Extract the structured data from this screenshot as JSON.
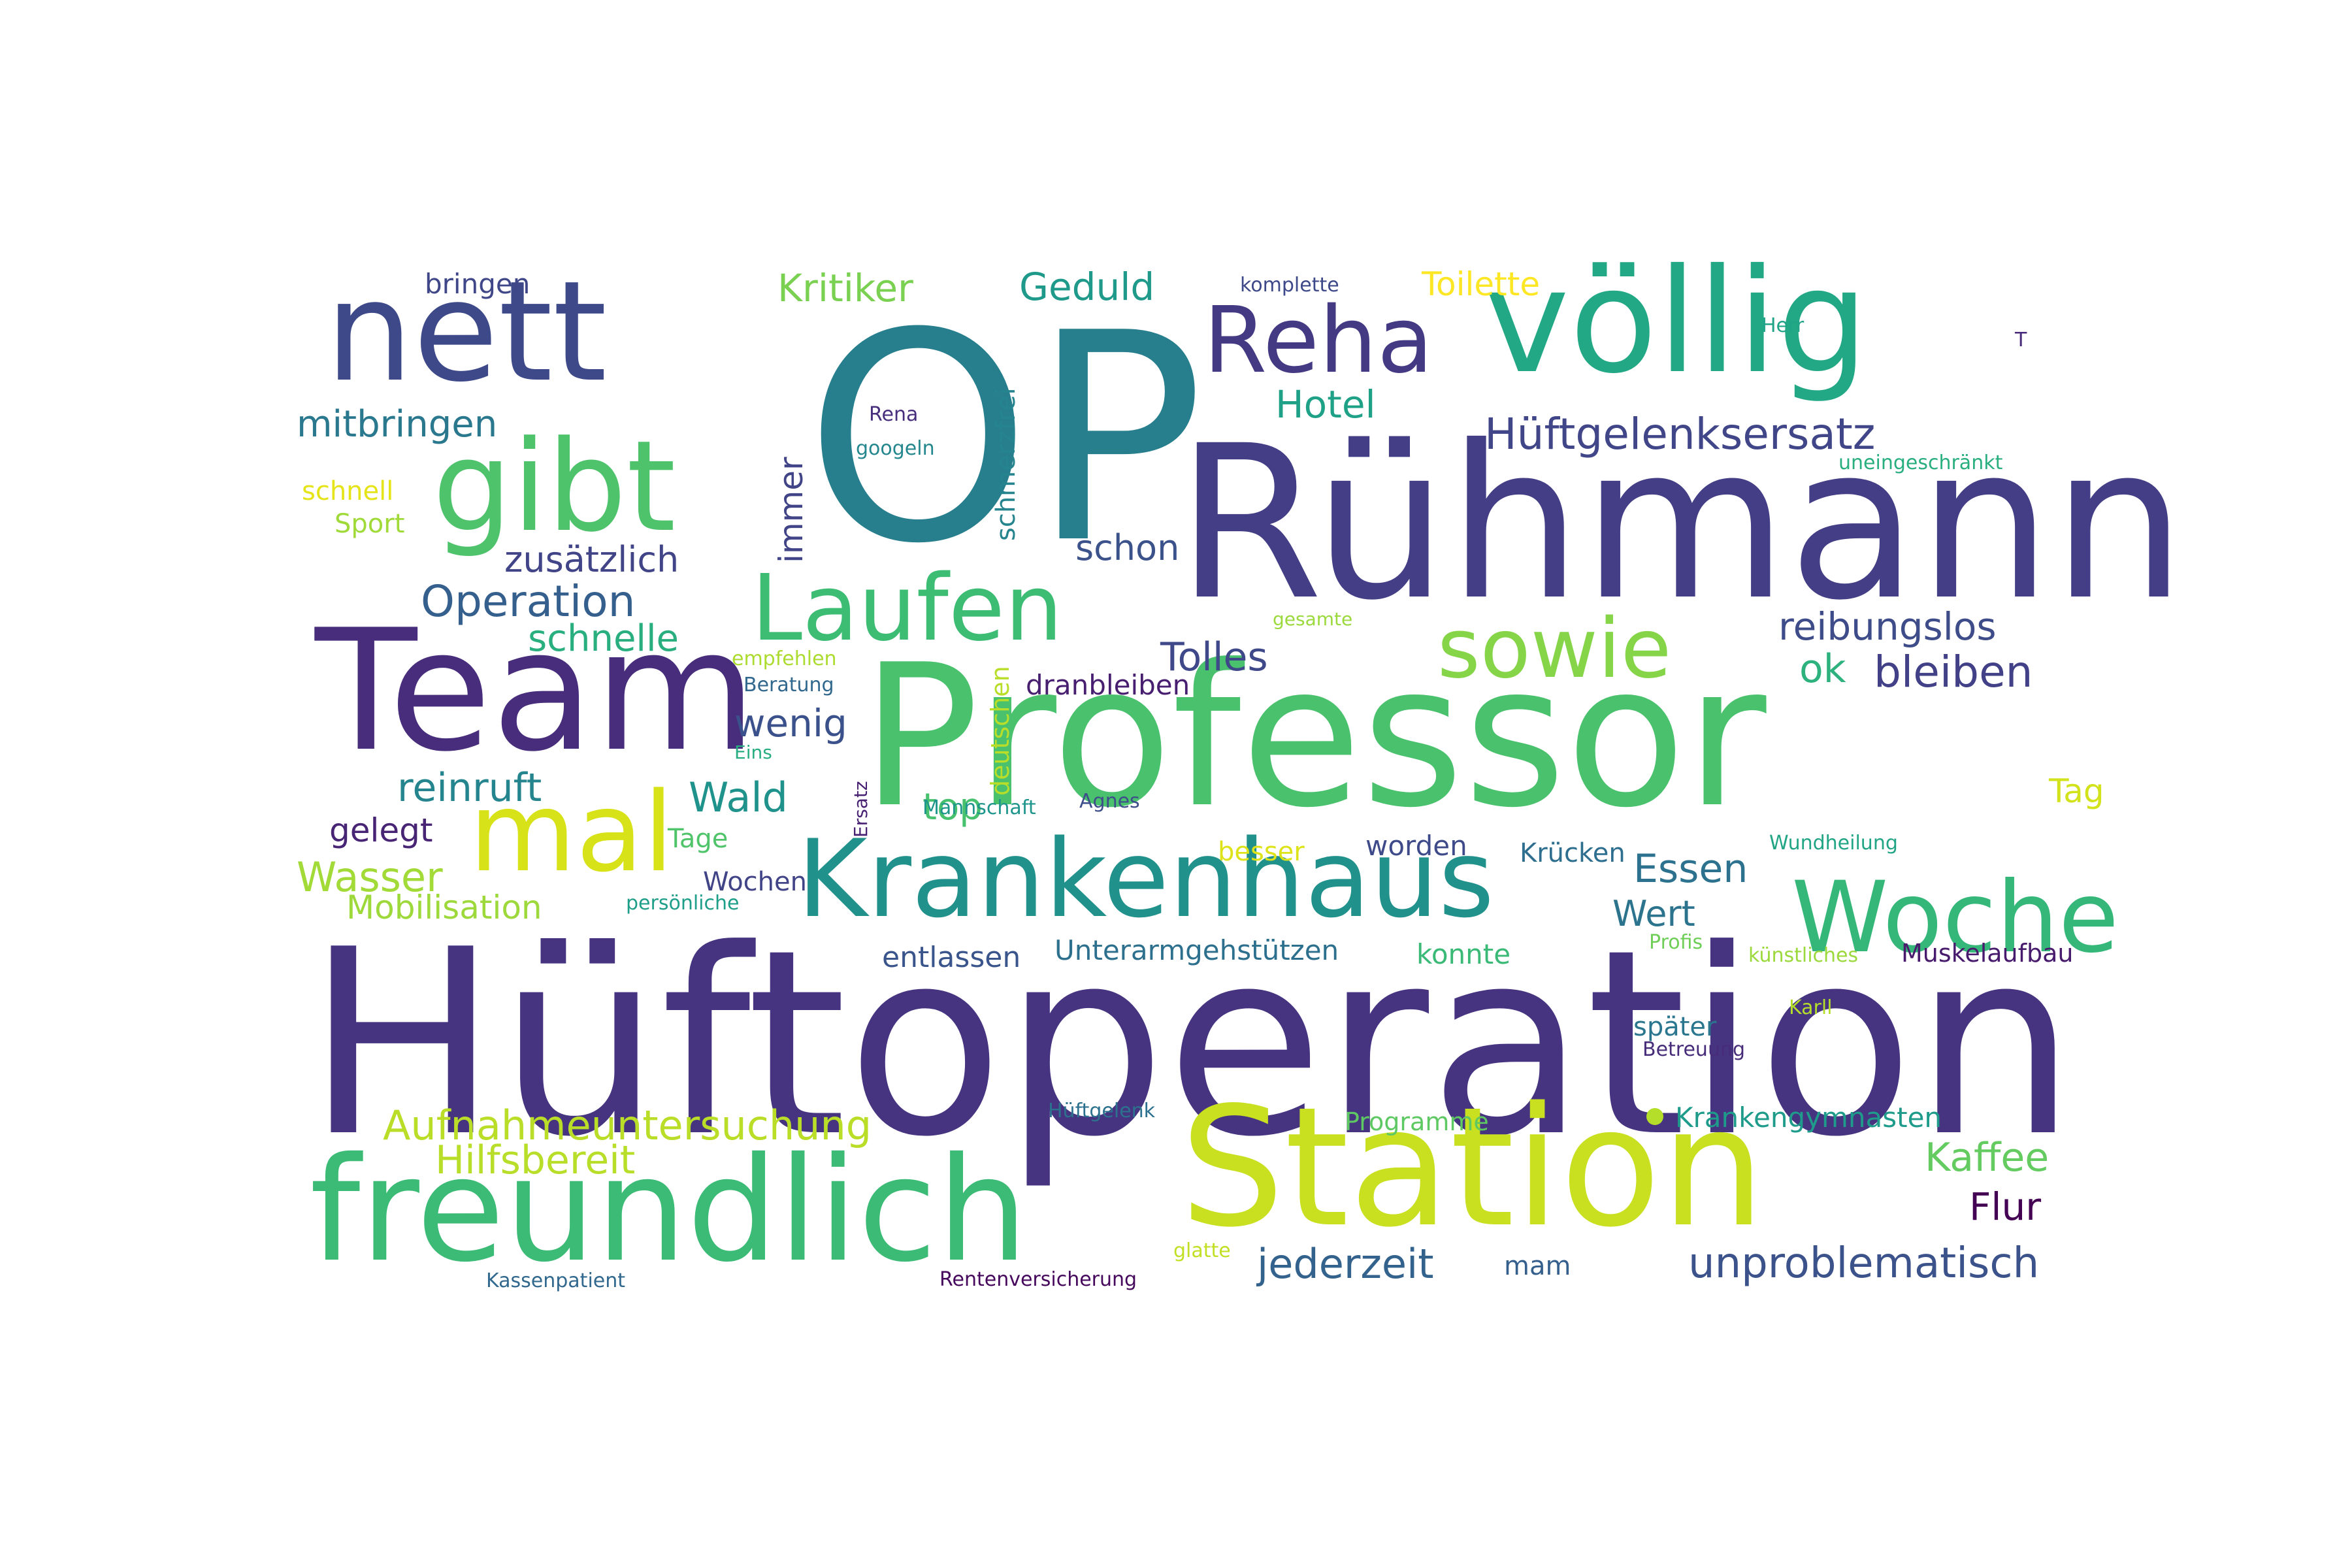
{
  "words": {
    "huftoperation": {
      "text": "Hüftoperation",
      "color": "#463480"
    },
    "op": {
      "text": "OP",
      "color": "#277f8e"
    },
    "professor": {
      "text": "Professor",
      "color": "#4ac16d"
    },
    "ruhmann": {
      "text": "Rühmann",
      "color": "#433e85"
    },
    "team": {
      "text": "Team",
      "color": "#472d7b"
    },
    "station": {
      "text": "Station",
      "color": "#c8e020"
    },
    "freundlich": {
      "text": "freundlich",
      "color": "#3bbb75"
    },
    "nett": {
      "text": "nett",
      "color": "#3e4989"
    },
    "volig": {
      "text": "völlig",
      "color": "#22a884"
    },
    "gibt": {
      "text": "gibt",
      "color": "#4ec36b"
    },
    "krankenhaus": {
      "text": "Krankenhaus",
      "color": "#21918c"
    },
    "woche": {
      "text": "Woche",
      "color": "#35b779"
    },
    "mal": {
      "text": "mal",
      "color": "#d8e219"
    },
    "reha": {
      "text": "Reha",
      "color": "#443983"
    },
    "laufen": {
      "text": "Laufen",
      "color": "#3dbc74"
    },
    "sowie": {
      "text": "sowie",
      "color": "#86d549"
    },
    "huftgelenksersatz": {
      "text": "Hüftgelenksersatz",
      "color": "#404688"
    },
    "kritiker": {
      "text": "Kritiker",
      "color": "#7ad151"
    },
    "geduld": {
      "text": "Geduld",
      "color": "#1f9a8a"
    },
    "hotel": {
      "text": "Hotel",
      "color": "#1fa187"
    },
    "mitbringen": {
      "text": "mitbringen",
      "color": "#2a788e"
    },
    "operation": {
      "text": "Operation",
      "color": "#355f8d"
    },
    "zusatzlich": {
      "text": "zusätzlich",
      "color": "#414487"
    },
    "schnelle": {
      "text": "schnelle",
      "color": "#29af7f"
    },
    "schon": {
      "text": "schon",
      "color": "#3b528b"
    },
    "reibungslos": {
      "text": "reibungslos",
      "color": "#3e4c8a"
    },
    "tolles": {
      "text": "Tolles",
      "color": "#3f4889"
    },
    "ok": {
      "text": "ok",
      "color": "#2db27d"
    },
    "bleiben": {
      "text": "bleiben",
      "color": "#424086"
    },
    "wenig": {
      "text": "wenig",
      "color": "#3b518b"
    },
    "reinruft": {
      "text": "reinruft",
      "color": "#25858e"
    },
    "wald": {
      "text": "Wald",
      "color": "#20928c"
    },
    "top": {
      "text": "top",
      "color": "#48c16e"
    },
    "gelegt": {
      "text": "gelegt",
      "color": "#482475"
    },
    "wasser": {
      "text": "Wasser",
      "color": "#a2da37"
    },
    "mobilisation": {
      "text": "Mobilisation",
      "color": "#9dd93b"
    },
    "essen": {
      "text": "Essen",
      "color": "#2c728e"
    },
    "wert": {
      "text": "Wert",
      "color": "#2c738e"
    },
    "tag": {
      "text": "Tag",
      "color": "#d2e21b"
    },
    "entlassen": {
      "text": "entlassen",
      "color": "#3a548c"
    },
    "unterarmgehstutzen": {
      "text": "Unterarmgehstützen",
      "color": "#2d708e"
    },
    "konnte": {
      "text": "konnte",
      "color": "#3aba76"
    },
    "muskelaufbau": {
      "text": "Muskelaufbau",
      "color": "#481b6d"
    },
    "worden": {
      "text": "worden",
      "color": "#3e4a89"
    },
    "krucken": {
      "text": "Krücken",
      "color": "#2e6e8e"
    },
    "dranbleiben": {
      "text": "dranbleiben",
      "color": "#481f70"
    },
    "toilette": {
      "text": "Toilette",
      "color": "#fde725"
    },
    "bringen": {
      "text": "bringen",
      "color": "#3f4788"
    },
    "schnell": {
      "text": "schnell",
      "color": "#e5e419"
    },
    "sport": {
      "text": "Sport",
      "color": "#a0da39"
    },
    "aufnahmeuntersuchung": {
      "text": "Aufnahmeuntersuchung",
      "color": "#bade28"
    },
    "hilfsbereit": {
      "text": "Hilfsbereit",
      "color": "#b8de29"
    },
    "kaffee": {
      "text": "Kaffee",
      "color": "#63cb5f"
    },
    "flur": {
      "text": "Flur",
      "color": "#440154"
    },
    "jederzeit": {
      "text": "jederzeit",
      "color": "#33638d"
    },
    "unproblematisch": {
      "text": "unproblematisch",
      "color": "#3b528b"
    },
    "krankengymnasten": {
      "text": "Krankengymnasten",
      "color": "#1e9b8a"
    },
    "programme": {
      "text": "Programme",
      "color": "#5ec962"
    },
    "spater": {
      "text": "später",
      "color": "#2a768e"
    },
    "besser": {
      "text": "besser",
      "color": "#dde318"
    },
    "tage": {
      "text": "Tage",
      "color": "#50c46a"
    },
    "wochen": {
      "text": "Wochen",
      "color": "#414487"
    },
    "mam": {
      "text": "mam",
      "color": "#355f8d"
    },
    "komplette": {
      "text": "komplette",
      "color": "#3e4989"
    },
    "herr": {
      "text": "Herr",
      "color": "#20a386"
    },
    "t": {
      "text": "T",
      "color": "#472a7a"
    },
    "rena": {
      "text": "Rena",
      "color": "#472f7d"
    },
    "googeln": {
      "text": "googeln",
      "color": "#24878e"
    },
    "uneingeschrankt": {
      "text": "uneingeschränkt",
      "color": "#29af7f"
    },
    "gesamte": {
      "text": "gesamte",
      "color": "#9bd93c"
    },
    "empfehlen": {
      "text": "empfehlen",
      "color": "#addc30"
    },
    "beratung": {
      "text": "Beratung",
      "color": "#31688e"
    },
    "eins": {
      "text": "Eins",
      "color": "#27ad81"
    },
    "agnes": {
      "text": "Agnes",
      "color": "#3d4e8a"
    },
    "mannschaft": {
      "text": "Mannschaft",
      "color": "#1f968b"
    },
    "personliche": {
      "text": "persönliche",
      "color": "#1f9e89"
    },
    "wundheilung": {
      "text": "Wundheilung",
      "color": "#21a585"
    },
    "profis": {
      "text": "Profis",
      "color": "#6ece58"
    },
    "kunstliches": {
      "text": "künstliches",
      "color": "#9bd93c"
    },
    "karll": {
      "text": "Karll",
      "color": "#b5de2b"
    },
    "betreuung": {
      "text": "Betreuung",
      "color": "#472c7a"
    },
    "huftgelenk": {
      "text": "Hüftgelenk",
      "color": "#2c728e"
    },
    "glatte": {
      "text": "glatte",
      "color": "#c2df23"
    },
    "kassenpatient": {
      "text": "Kassenpatient",
      "color": "#31688e"
    },
    "rentenversicherung": {
      "text": "Rentenversicherung",
      "color": "#46085c"
    },
    "schmerzfrei": {
      "text": "schmerzfrei",
      "color": "#25848e"
    },
    "immer": {
      "text": "immer",
      "color": "#414487"
    },
    "deutschen": {
      "text": "deutschen",
      "color": "#b8de29"
    },
    "ersatz": {
      "text": "Ersatz",
      "color": "#482173"
    }
  },
  "dot_color": "#b5de2b"
}
